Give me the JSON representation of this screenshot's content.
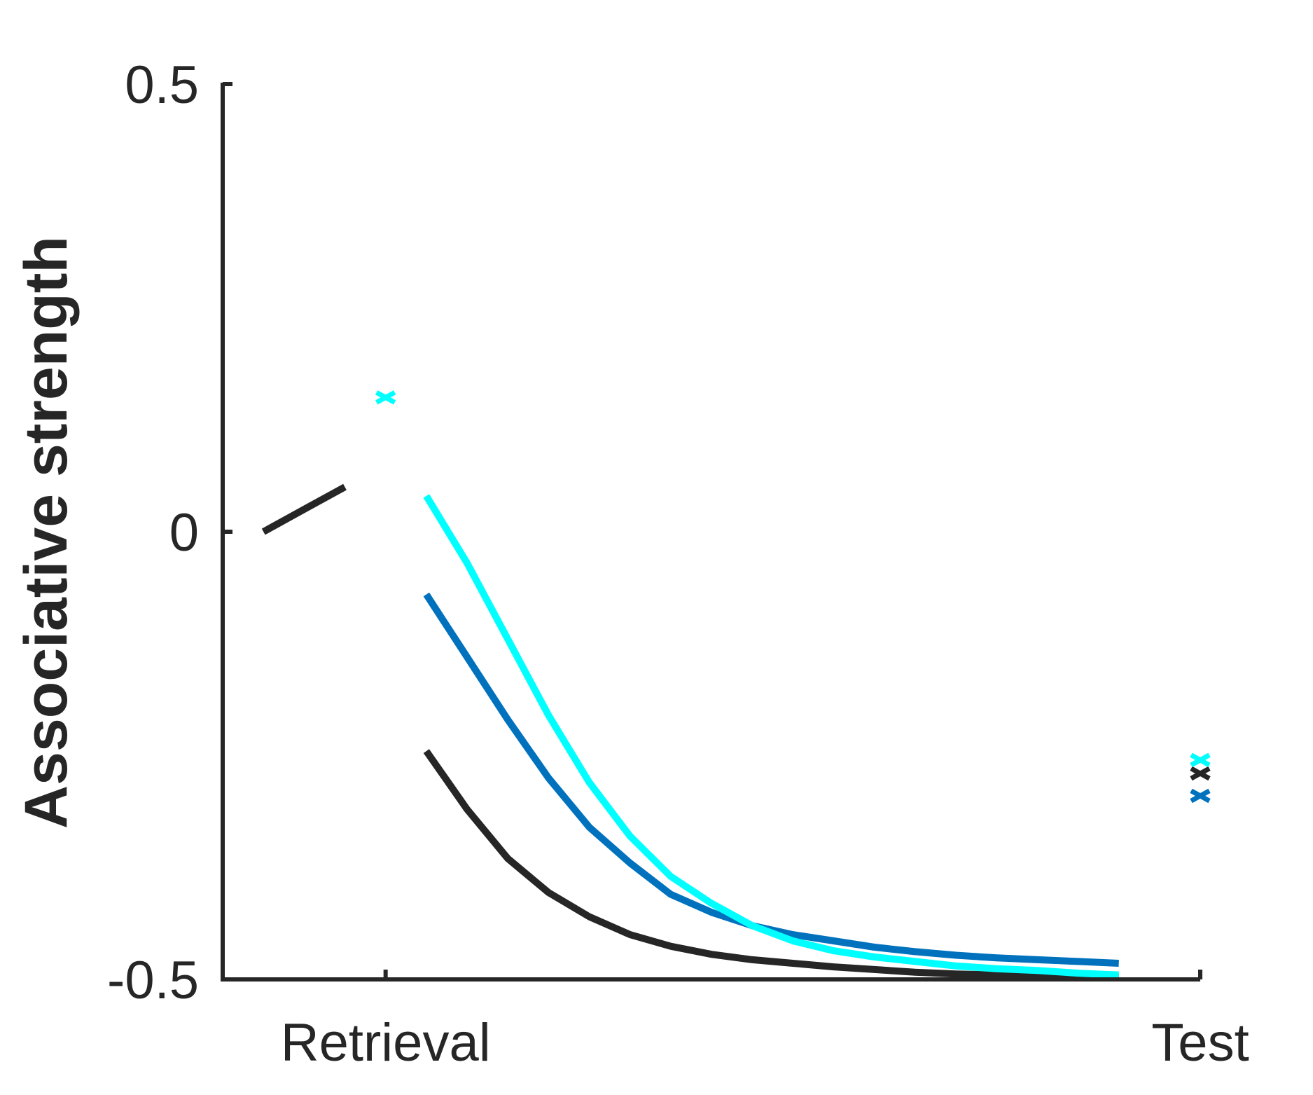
{
  "chart_data": {
    "type": "line",
    "title": "",
    "xlabel": "",
    "ylabel": "Associative strength",
    "ylim": [
      -0.5,
      0.5
    ],
    "yticks": [
      {
        "value": 0.5,
        "label": "0.5"
      },
      {
        "value": 0,
        "label": "0"
      },
      {
        "value": -0.5,
        "label": "-0.5"
      }
    ],
    "xlim": [
      -3,
      21
    ],
    "xticks": [
      {
        "value": 1,
        "label": "Retrieval"
      },
      {
        "value": 21,
        "label": "Test"
      }
    ],
    "grid": false,
    "colors": {
      "black": "#262626",
      "blue": "#0072BD",
      "cyan": "#00FFFF"
    },
    "series": [
      {
        "color": "#262626",
        "segments": [
          {
            "x": [
              -2,
              -1,
              0
            ],
            "y": [
              0.0,
              0.025,
              0.05
            ]
          },
          {
            "x": [
              2,
              3,
              4,
              5,
              6,
              7,
              8,
              9,
              10,
              11,
              12,
              13,
              14,
              15,
              16,
              17,
              18,
              19
            ],
            "y": [
              -0.245,
              -0.31,
              -0.365,
              -0.403,
              -0.43,
              -0.45,
              -0.463,
              -0.472,
              -0.478,
              -0.482,
              -0.486,
              -0.489,
              -0.492,
              -0.494,
              -0.495,
              -0.496,
              -0.497,
              -0.498
            ]
          }
        ],
        "markers": [
          {
            "x": 21,
            "y": -0.27
          }
        ]
      },
      {
        "color": "#0072BD",
        "segments": [
          {
            "x": [
              2,
              3,
              4,
              5,
              6,
              7,
              8,
              9,
              10,
              11,
              12,
              13,
              14,
              15,
              16,
              17,
              18,
              19
            ],
            "y": [
              -0.07,
              -0.14,
              -0.21,
              -0.275,
              -0.33,
              -0.37,
              -0.405,
              -0.425,
              -0.44,
              -0.45,
              -0.457,
              -0.464,
              -0.469,
              -0.473,
              -0.476,
              -0.478,
              -0.48,
              -0.482
            ]
          }
        ],
        "markers": [
          {
            "x": 21,
            "y": -0.295
          }
        ]
      },
      {
        "color": "#00FFFF",
        "segments": [
          {
            "x": [
              2,
              3,
              4,
              5,
              6,
              7,
              8,
              9,
              10,
              11,
              12,
              13,
              14,
              15,
              16,
              17,
              18,
              19
            ],
            "y": [
              0.04,
              -0.035,
              -0.12,
              -0.205,
              -0.28,
              -0.34,
              -0.385,
              -0.415,
              -0.44,
              -0.457,
              -0.468,
              -0.475,
              -0.48,
              -0.485,
              -0.488,
              -0.49,
              -0.493,
              -0.495
            ]
          }
        ],
        "markers": [
          {
            "x": 1,
            "y": 0.15
          },
          {
            "x": 21,
            "y": -0.255
          }
        ]
      }
    ]
  }
}
